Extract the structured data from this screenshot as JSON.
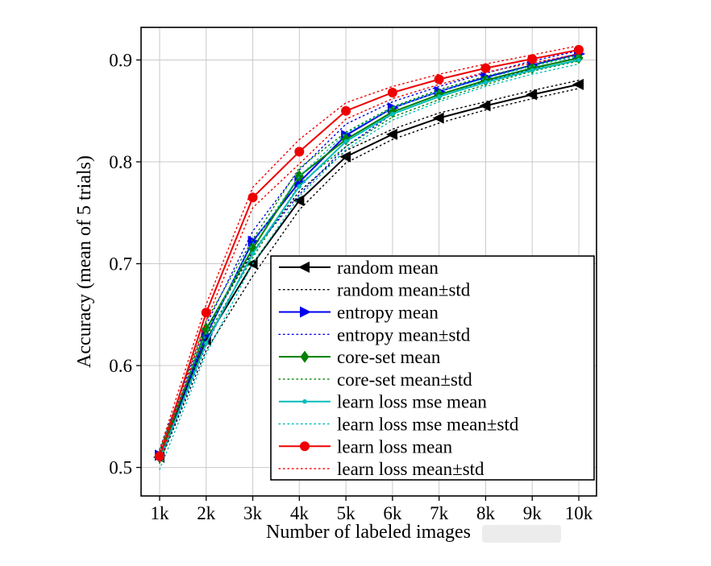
{
  "figure": {
    "background_color": "#ffffff",
    "grid_color": "#c9c9c9",
    "border_color": "#000000"
  },
  "chart_data": {
    "type": "line",
    "title": "",
    "xlabel": "Number of labeled images",
    "ylabel": "Accuracy (mean of 5 trials)",
    "categories": [
      "1k",
      "2k",
      "3k",
      "4k",
      "5k",
      "6k",
      "7k",
      "8k",
      "9k",
      "10k"
    ],
    "x_values": [
      1000,
      2000,
      3000,
      4000,
      5000,
      6000,
      7000,
      8000,
      9000,
      10000
    ],
    "yticks": [
      "0.5",
      "0.6",
      "0.7",
      "0.8",
      "0.9"
    ],
    "ylim": [
      0.472,
      0.932
    ],
    "grid": true,
    "legend_position": "inside-lower-right",
    "series": [
      {
        "name": "random mean",
        "std_name": "random mean±std",
        "color": "#000000",
        "marker": "triangle-left",
        "line_style": "solid",
        "values": [
          0.51,
          0.625,
          0.7,
          0.762,
          0.805,
          0.827,
          0.843,
          0.855,
          0.866,
          0.876
        ],
        "std": [
          0.005,
          0.01,
          0.012,
          0.009,
          0.006,
          0.005,
          0.005,
          0.004,
          0.004,
          0.004
        ]
      },
      {
        "name": "entropy mean",
        "std_name": "entropy mean±std",
        "color": "#0000ee",
        "marker": "triangle-right",
        "line_style": "solid",
        "values": [
          0.512,
          0.63,
          0.722,
          0.78,
          0.826,
          0.853,
          0.869,
          0.883,
          0.895,
          0.906
        ],
        "std": [
          0.006,
          0.01,
          0.01,
          0.012,
          0.011,
          0.006,
          0.005,
          0.004,
          0.004,
          0.003
        ]
      },
      {
        "name": "core-set mean",
        "std_name": "core-set mean±std",
        "color": "#008000",
        "marker": "diamond",
        "line_style": "solid",
        "values": [
          0.51,
          0.636,
          0.715,
          0.786,
          0.822,
          0.849,
          0.866,
          0.88,
          0.892,
          0.902
        ],
        "std": [
          0.006,
          0.008,
          0.009,
          0.008,
          0.007,
          0.005,
          0.005,
          0.004,
          0.003,
          0.003
        ]
      },
      {
        "name": "learn loss mse mean",
        "std_name": "learn loss mse mean±std",
        "color": "#00bcbc",
        "marker": "dot",
        "line_style": "solid",
        "values": [
          0.508,
          0.622,
          0.71,
          0.776,
          0.82,
          0.847,
          0.864,
          0.878,
          0.89,
          0.9
        ],
        "std": [
          0.01,
          0.01,
          0.01,
          0.01,
          0.008,
          0.006,
          0.005,
          0.004,
          0.004,
          0.004
        ]
      },
      {
        "name": "learn loss mean",
        "std_name": "learn loss mean±std",
        "color": "#ee0000",
        "marker": "circle",
        "line_style": "solid",
        "values": [
          0.511,
          0.652,
          0.765,
          0.81,
          0.85,
          0.868,
          0.881,
          0.892,
          0.901,
          0.91
        ],
        "std": [
          0.006,
          0.008,
          0.01,
          0.012,
          0.008,
          0.006,
          0.005,
          0.004,
          0.004,
          0.004
        ]
      }
    ]
  }
}
